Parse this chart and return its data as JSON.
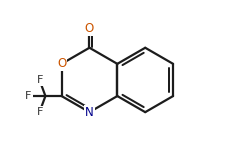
{
  "bg_color": "#ffffff",
  "bond_color": "#1c1c1c",
  "atom_colors": {
    "O": "#cc5500",
    "N": "#00008b",
    "F": "#333333"
  },
  "bond_width": 1.6,
  "figsize": [
    2.31,
    1.5
  ],
  "dpi": 100,
  "xlim": [
    0.0,
    1.0
  ],
  "ylim": [
    0.05,
    0.95
  ]
}
